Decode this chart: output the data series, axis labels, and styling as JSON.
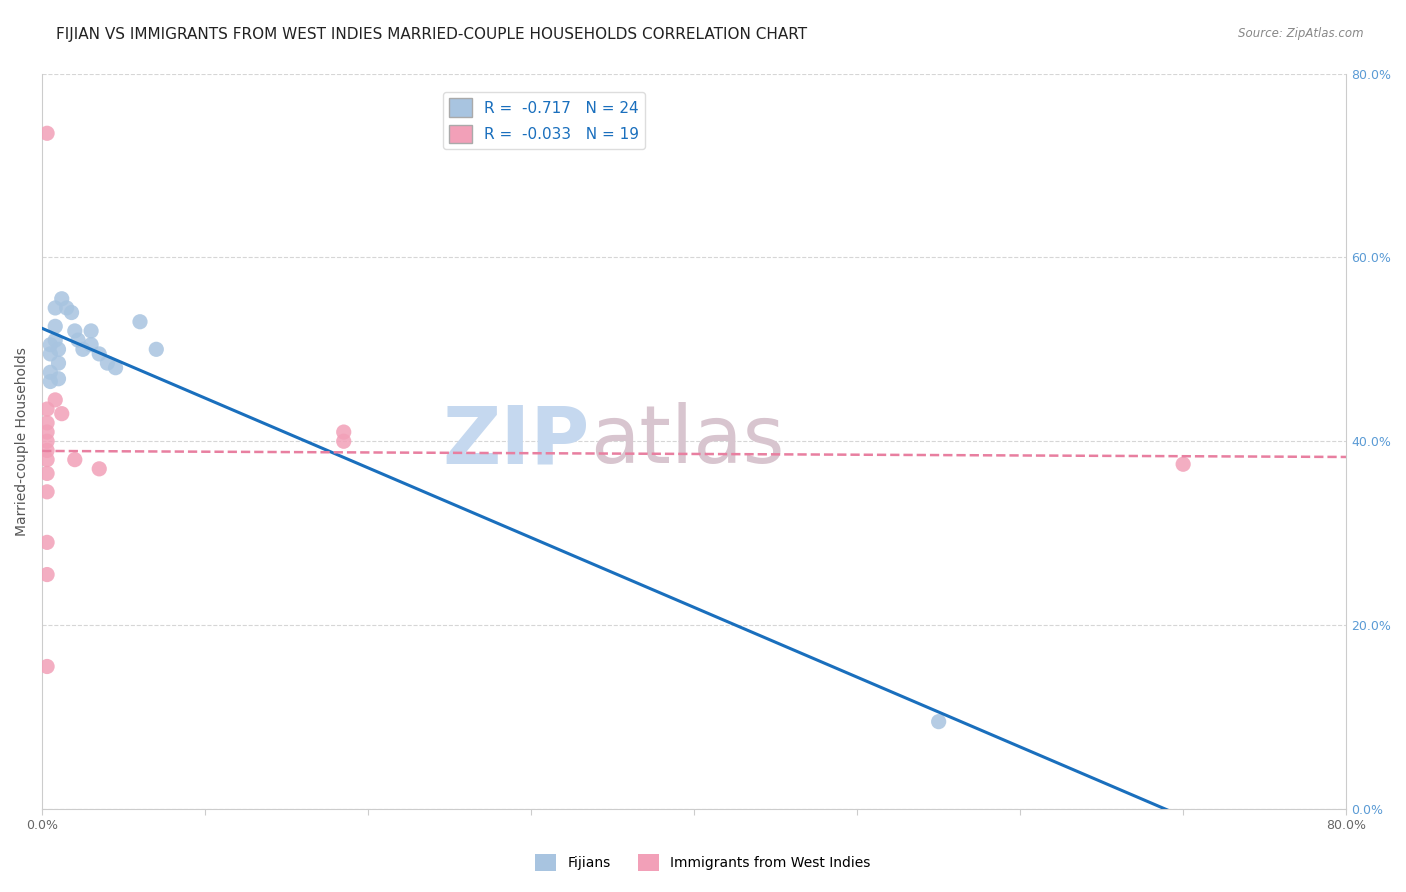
{
  "title": "FIJIAN VS IMMIGRANTS FROM WEST INDIES MARRIED-COUPLE HOUSEHOLDS CORRELATION CHART",
  "source": "Source: ZipAtlas.com",
  "ylabel": "Married-couple Households",
  "xlim": [
    0.0,
    0.8
  ],
  "ylim": [
    0.0,
    0.8
  ],
  "ytick_vals": [
    0.0,
    0.2,
    0.4,
    0.6,
    0.8
  ],
  "ytick_labels_right": [
    "0.0%",
    "20.0%",
    "40.0%",
    "60.0%",
    "80.0%"
  ],
  "xtick_vals": [
    0.0,
    0.1,
    0.2,
    0.3,
    0.4,
    0.5,
    0.6,
    0.7,
    0.8
  ],
  "xtick_labels": [
    "0.0%",
    "",
    "",
    "",
    "",
    "",
    "",
    "",
    "80.0%"
  ],
  "watermark_part1": "ZIP",
  "watermark_part2": "atlas",
  "legend_fijians_R": "-0.717",
  "legend_fijians_N": "24",
  "legend_wi_R": "-0.033",
  "legend_wi_N": "19",
  "fijian_color": "#a8c4e0",
  "wi_color": "#f2a0b8",
  "fijian_line_color": "#1a6fbd",
  "wi_line_color": "#e87fa0",
  "fijian_points": [
    [
      0.005,
      0.505
    ],
    [
      0.005,
      0.495
    ],
    [
      0.005,
      0.475
    ],
    [
      0.005,
      0.465
    ],
    [
      0.008,
      0.545
    ],
    [
      0.008,
      0.525
    ],
    [
      0.008,
      0.51
    ],
    [
      0.01,
      0.5
    ],
    [
      0.01,
      0.485
    ],
    [
      0.01,
      0.468
    ],
    [
      0.012,
      0.555
    ],
    [
      0.015,
      0.545
    ],
    [
      0.018,
      0.54
    ],
    [
      0.02,
      0.52
    ],
    [
      0.022,
      0.51
    ],
    [
      0.025,
      0.5
    ],
    [
      0.03,
      0.52
    ],
    [
      0.03,
      0.505
    ],
    [
      0.035,
      0.495
    ],
    [
      0.04,
      0.485
    ],
    [
      0.045,
      0.48
    ],
    [
      0.06,
      0.53
    ],
    [
      0.07,
      0.5
    ],
    [
      0.55,
      0.095
    ]
  ],
  "wi_points": [
    [
      0.003,
      0.735
    ],
    [
      0.003,
      0.435
    ],
    [
      0.003,
      0.42
    ],
    [
      0.003,
      0.41
    ],
    [
      0.003,
      0.4
    ],
    [
      0.003,
      0.39
    ],
    [
      0.003,
      0.38
    ],
    [
      0.003,
      0.365
    ],
    [
      0.003,
      0.345
    ],
    [
      0.003,
      0.29
    ],
    [
      0.003,
      0.255
    ],
    [
      0.003,
      0.155
    ],
    [
      0.008,
      0.445
    ],
    [
      0.012,
      0.43
    ],
    [
      0.02,
      0.38
    ],
    [
      0.035,
      0.37
    ],
    [
      0.185,
      0.41
    ],
    [
      0.185,
      0.4
    ],
    [
      0.7,
      0.375
    ]
  ],
  "background_color": "#ffffff",
  "grid_color": "#cccccc",
  "title_fontsize": 11,
  "axis_label_fontsize": 10,
  "tick_fontsize": 9,
  "legend_fontsize": 11,
  "watermark_color_zip": "#c5d8ef",
  "watermark_color_atlas": "#d8c5cf",
  "watermark_fontsize": 58
}
